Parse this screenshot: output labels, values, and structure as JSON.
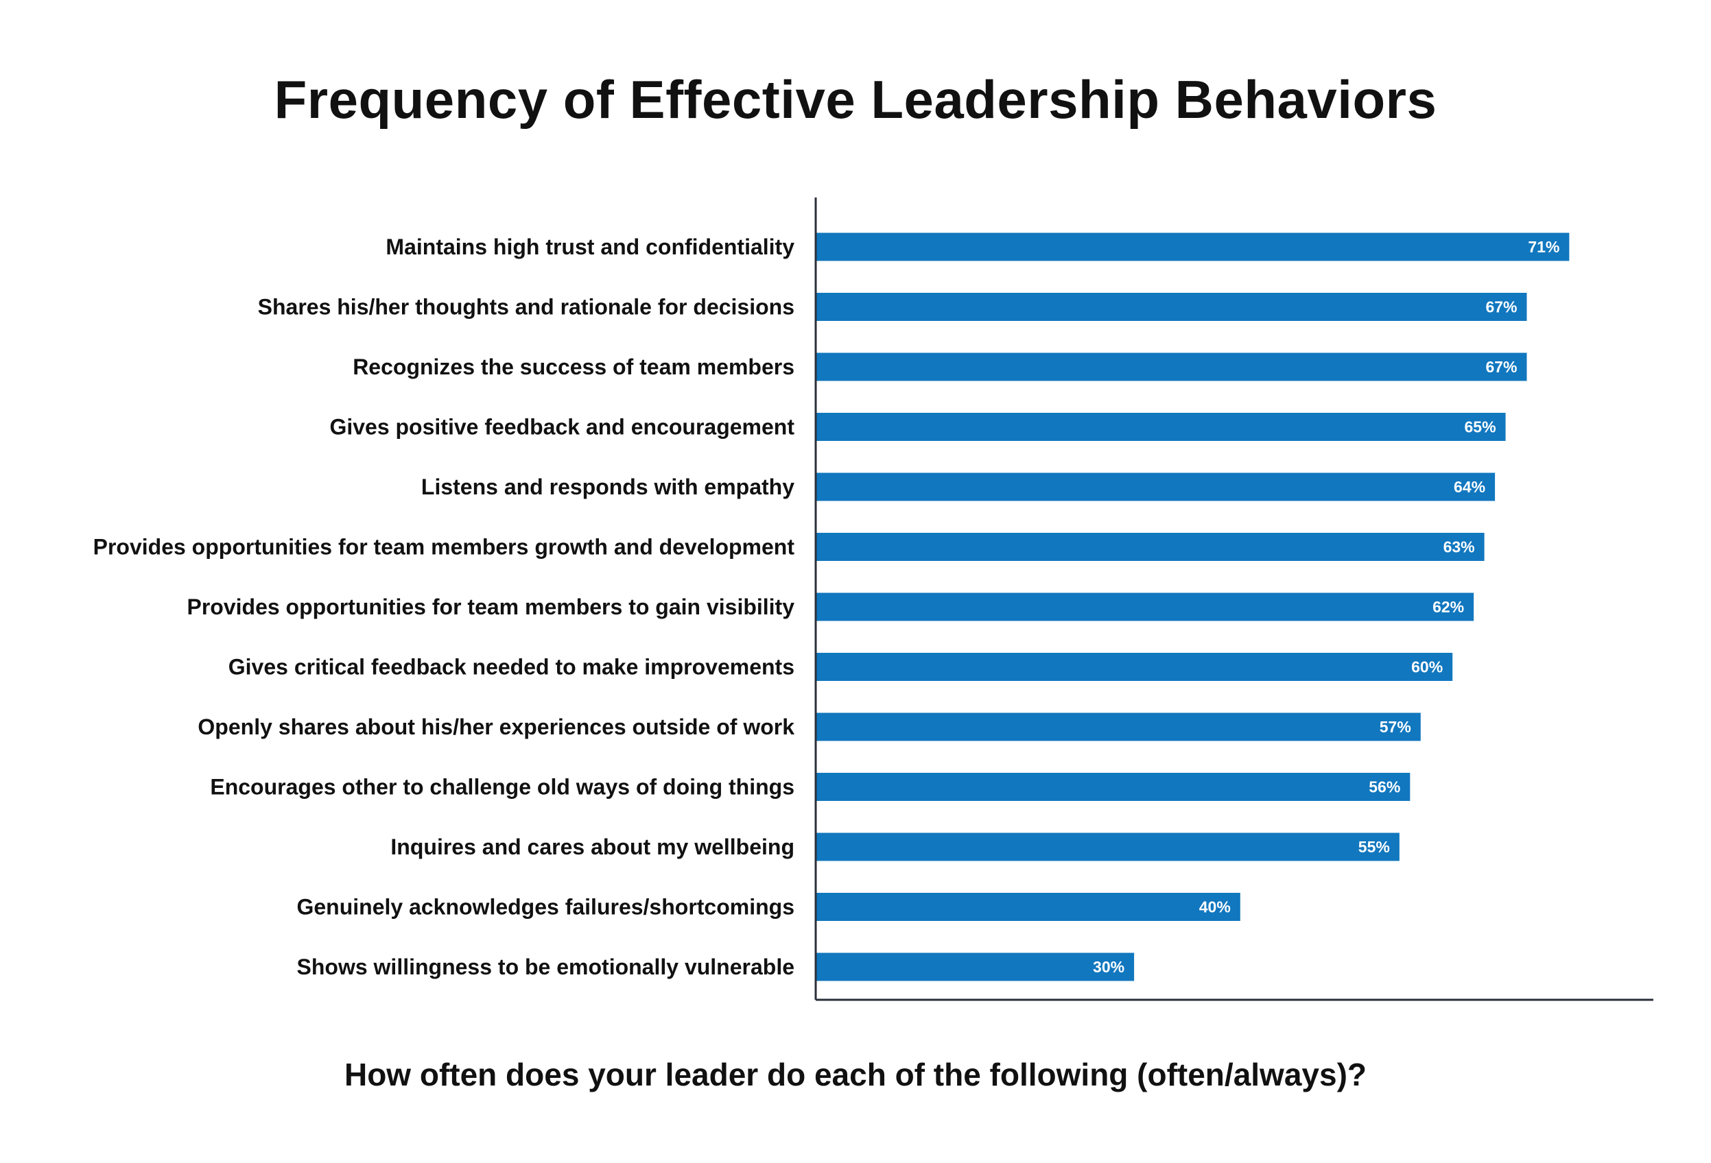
{
  "chart_data": {
    "type": "bar",
    "orientation": "horizontal",
    "title": "Frequency of Effective Leadership Behaviors",
    "subtitle": "How often does your leader do each of the following (often/always)?",
    "categories": [
      "Maintains high trust and confidentiality",
      "Shares his/her thoughts and rationale for decisions",
      "Recognizes the success of team members",
      "Gives positive feedback and encouragement",
      "Listens and responds with empathy",
      "Provides opportunities for team members growth and development",
      "Provides opportunities for team members to gain visibility",
      "Gives critical feedback needed to make improvements",
      "Openly shares about his/her experiences outside of work",
      "Encourages other to challenge old ways of doing things",
      "Inquires and cares about my wellbeing",
      "Genuinely acknowledges failures/shortcomings",
      "Shows willingness to be emotionally vulnerable"
    ],
    "values": [
      71,
      67,
      67,
      65,
      64,
      63,
      62,
      60,
      57,
      56,
      55,
      40,
      30
    ],
    "value_labels": [
      "71%",
      "67%",
      "67%",
      "65%",
      "64%",
      "63%",
      "62%",
      "60%",
      "57%",
      "56%",
      "55%",
      "40%",
      "30%"
    ],
    "unit": "%",
    "xlim": [
      0,
      100
    ],
    "grid": false,
    "legend": "none",
    "bar_color": "#1177bf",
    "axis_color": "#2b2f3a"
  }
}
